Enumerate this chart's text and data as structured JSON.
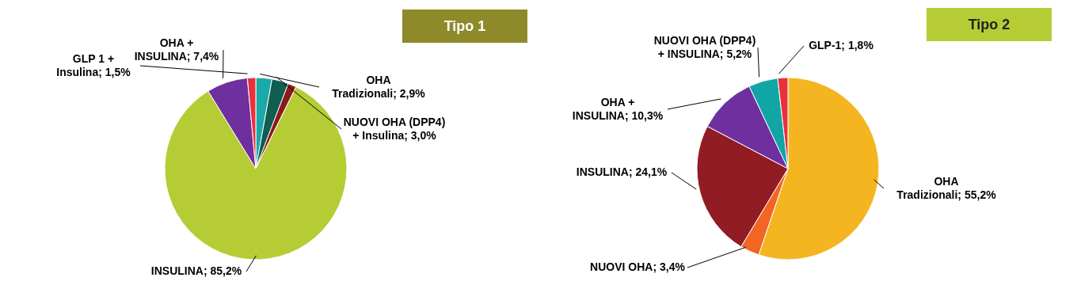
{
  "chart_data": [
    {
      "type": "pie",
      "title": "Tipo 1",
      "categories": [
        "OHA Tradizionali",
        "NUOVI OHA (DPP4) + Insulina",
        null,
        "INSULINA",
        "OHA + INSULINA",
        "GLP 1 + Insulina"
      ],
      "values": [
        2.9,
        3.0,
        1.5,
        85.2,
        7.4,
        1.5
      ],
      "value_labels": [
        "2,9%",
        "3,0%",
        null,
        "85,2%",
        "7,4%",
        "1,5%"
      ],
      "colors": [
        "#1aa8a8",
        "#0f5e4f",
        "#8b1a1a",
        "#b5cc34",
        "#6f2f9f",
        "#e8313b"
      ]
    },
    {
      "type": "pie",
      "title": "Tipo 2",
      "categories": [
        "OHA Tradizionali",
        "NUOVI OHA",
        "INSULINA",
        "OHA + INSULINA",
        "NUOVI OHA (DPP4) + INSULINA",
        "GLP-1"
      ],
      "values": [
        55.2,
        3.4,
        24.1,
        10.3,
        5.2,
        1.8
      ],
      "value_labels": [
        "55,2%",
        "3,4%",
        "24,1%",
        "10,3%",
        "5,2%",
        "1,8%"
      ],
      "colors": [
        "#f4b520",
        "#f26522",
        "#921c24",
        "#6f2f9f",
        "#12a5a5",
        "#e8313b"
      ]
    }
  ]
}
